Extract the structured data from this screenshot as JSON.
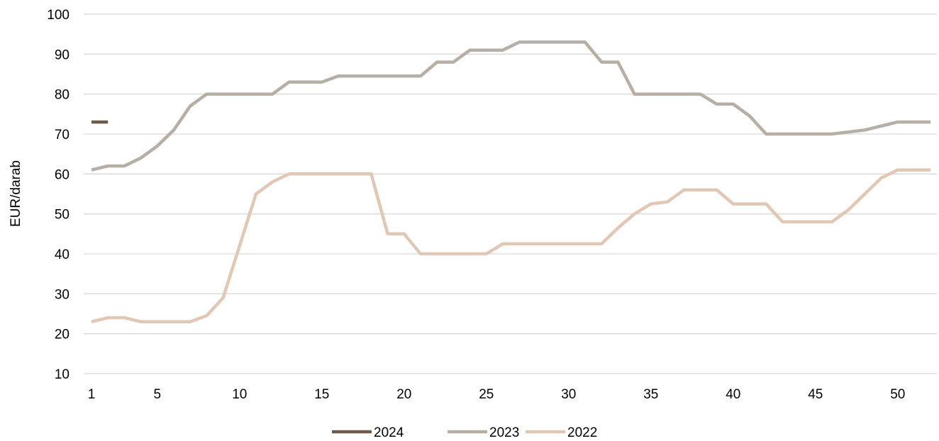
{
  "chart_data": {
    "type": "line",
    "title": "",
    "xlabel": "",
    "ylabel": "EUR/darab",
    "ylim": [
      10,
      100
    ],
    "yticks": [
      10,
      20,
      30,
      40,
      50,
      60,
      70,
      80,
      90,
      100
    ],
    "xlim": [
      1,
      52
    ],
    "xticks": [
      1,
      5,
      10,
      15,
      20,
      25,
      30,
      35,
      40,
      45,
      50
    ],
    "grid": "horizontal",
    "legend_position": "bottom",
    "series": [
      {
        "name": "2024",
        "color": "#6f5a4a",
        "x": [
          1,
          2
        ],
        "values": [
          73,
          73
        ]
      },
      {
        "name": "2023",
        "color": "#b7aea5",
        "x": [
          1,
          2,
          3,
          4,
          5,
          6,
          7,
          8,
          9,
          10,
          11,
          12,
          13,
          14,
          15,
          16,
          17,
          18,
          19,
          20,
          21,
          22,
          23,
          24,
          25,
          26,
          27,
          28,
          29,
          30,
          31,
          32,
          33,
          34,
          35,
          36,
          37,
          38,
          39,
          40,
          41,
          42,
          43,
          44,
          45,
          46,
          47,
          48,
          49,
          50,
          51,
          52
        ],
        "values": [
          61,
          62,
          62,
          64,
          67,
          71,
          77,
          80,
          80,
          80,
          80,
          80,
          83,
          83,
          83,
          84.5,
          84.5,
          84.5,
          84.5,
          84.5,
          84.5,
          88,
          88,
          91,
          91,
          91,
          93,
          93,
          93,
          93,
          93,
          88,
          88,
          80,
          80,
          80,
          80,
          80,
          77.5,
          77.5,
          74.5,
          70,
          70,
          70,
          70,
          70,
          70.5,
          71,
          72,
          73,
          73,
          73
        ]
      },
      {
        "name": "2022",
        "color": "#e2c8b4",
        "x": [
          1,
          2,
          3,
          4,
          5,
          6,
          7,
          8,
          9,
          10,
          11,
          12,
          13,
          14,
          15,
          16,
          17,
          18,
          19,
          20,
          21,
          22,
          23,
          24,
          25,
          26,
          27,
          28,
          29,
          30,
          31,
          32,
          33,
          34,
          35,
          36,
          37,
          38,
          39,
          40,
          41,
          42,
          43,
          44,
          45,
          46,
          47,
          48,
          49,
          50,
          51,
          52
        ],
        "values": [
          23,
          24,
          24,
          23,
          23,
          23,
          23,
          24.5,
          29,
          42,
          55,
          58,
          60,
          60,
          60,
          60,
          60,
          60,
          45,
          45,
          40,
          40,
          40,
          40,
          40,
          42.5,
          42.5,
          42.5,
          42.5,
          42.5,
          42.5,
          42.5,
          46.5,
          50,
          52.5,
          53,
          56,
          56,
          56,
          52.5,
          52.5,
          52.5,
          48,
          48,
          48,
          48,
          51,
          55,
          59,
          61,
          61,
          61
        ]
      }
    ]
  }
}
